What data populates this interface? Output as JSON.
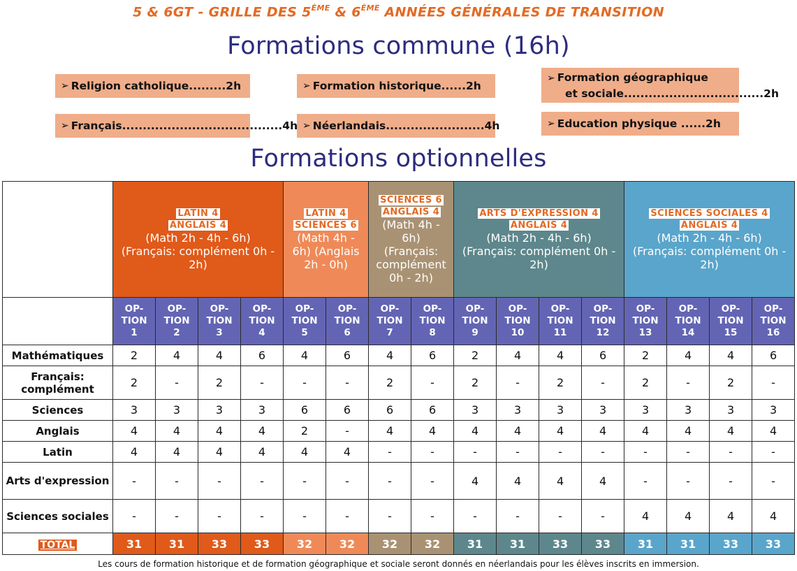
{
  "header": {
    "title_part1": "5 & 6GT - GRILLE DES 5",
    "sup1": "ÈME",
    "title_part2": " & 6",
    "sup2": "ÈME",
    "title_part3": " ANNÉES GÉNÉRALES DE TRANSITION"
  },
  "common": {
    "heading": "Formations commune (16h)",
    "items": [
      {
        "text": "Religion catholique.........2h"
      },
      {
        "text": "Formation historique......2h"
      },
      {
        "line1": "Formation géographique",
        "line2": "et sociale..................................2h"
      },
      {
        "text": "Français.......................................4h"
      },
      {
        "text": "Néerlandais........................4h"
      },
      {
        "text": "Education physique ......2h"
      }
    ]
  },
  "optional": {
    "heading": "Formations optionnelles",
    "groups": [
      {
        "title1": "LATIN 4",
        "title2": "ANGLAIS 4",
        "desc": "(Math 2h - 4h - 6h) (Français: complément 0h - 2h)",
        "color": "#e05a1a"
      },
      {
        "title1": "LATIN 4",
        "title2": "SCIENCES 6",
        "desc": "(Math 4h - 6h) (Anglais 2h - 0h)",
        "color": "#ef8a58"
      },
      {
        "title1": "SCIENCES 6",
        "title2": "ANGLAIS 4",
        "desc": "(Math 4h - 6h) (Français: complément 0h - 2h)",
        "color": "#a99273"
      },
      {
        "title1": "ARTS D'EXPRESSION 4",
        "title2": "ANGLAIS 4",
        "desc": "(Math 2h - 4h - 6h) (Français: complément 0h - 2h)",
        "color": "#5d878c"
      },
      {
        "title1": "SCIENCES SOCIALES 4",
        "title2": "ANGLAIS 4",
        "desc": "(Math 2h - 4h - 6h) (Français: complément 0h - 2h)",
        "color": "#5aa5cb"
      }
    ],
    "option_prefix": "OP- TION",
    "options": [
      "1",
      "2",
      "3",
      "4",
      "5",
      "6",
      "7",
      "8",
      "9",
      "10",
      "11",
      "12",
      "13",
      "14",
      "15",
      "16"
    ],
    "rows": [
      {
        "label": "Mathématiques",
        "values": [
          "2",
          "4",
          "4",
          "6",
          "4",
          "6",
          "4",
          "6",
          "2",
          "4",
          "4",
          "6",
          "2",
          "4",
          "4",
          "6"
        ]
      },
      {
        "label": "Français: complément",
        "values": [
          "2",
          "-",
          "2",
          "-",
          "-",
          "-",
          "2",
          "-",
          "2",
          "-",
          "2",
          "-",
          "2",
          "-",
          "2",
          "-"
        ]
      },
      {
        "label": "Sciences",
        "values": [
          "3",
          "3",
          "3",
          "3",
          "6",
          "6",
          "6",
          "6",
          "3",
          "3",
          "3",
          "3",
          "3",
          "3",
          "3",
          "3"
        ]
      },
      {
        "label": "Anglais",
        "values": [
          "4",
          "4",
          "4",
          "4",
          "2",
          "-",
          "4",
          "4",
          "4",
          "4",
          "4",
          "4",
          "4",
          "4",
          "4",
          "4"
        ]
      },
      {
        "label": "Latin",
        "values": [
          "4",
          "4",
          "4",
          "4",
          "4",
          "4",
          "-",
          "-",
          "-",
          "-",
          "-",
          "-",
          "-",
          "-",
          "-",
          "-"
        ]
      },
      {
        "label": "Arts d'expression",
        "values": [
          "-",
          "-",
          "-",
          "-",
          "-",
          "-",
          "-",
          "-",
          "4",
          "4",
          "4",
          "4",
          "-",
          "-",
          "-",
          "-"
        ]
      },
      {
        "label": "Sciences sociales",
        "values": [
          "-",
          "-",
          "-",
          "-",
          "-",
          "-",
          "-",
          "-",
          "-",
          "-",
          "-",
          "-",
          "4",
          "4",
          "4",
          "4"
        ]
      }
    ],
    "total_label": "TOTAL",
    "totals": [
      "31",
      "31",
      "33",
      "33",
      "32",
      "32",
      "32",
      "32",
      "31",
      "31",
      "33",
      "33",
      "31",
      "31",
      "33",
      "33"
    ]
  },
  "footnote": "Les cours de formation historique et de formation géographique et sociale seront donnés en néerlandais pour les élèves inscrits en immersion."
}
